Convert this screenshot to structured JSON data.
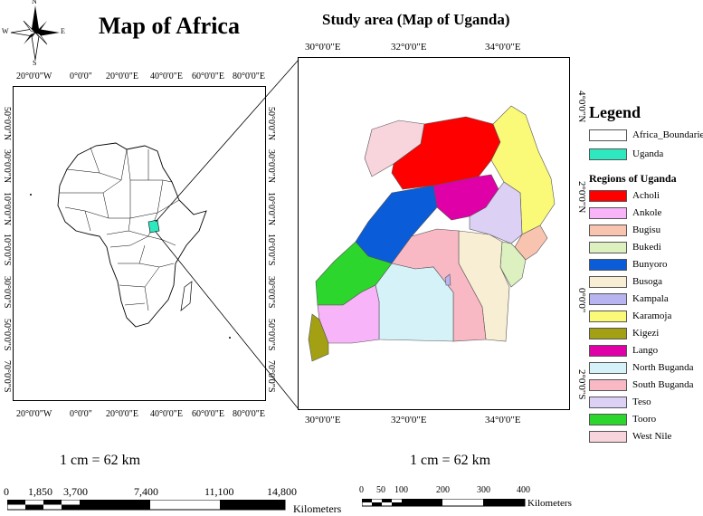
{
  "compass": {
    "n": "N",
    "s": "S",
    "e": "E",
    "w": "W"
  },
  "africa_title": "Map of Africa",
  "uganda_title": "Study area (Map of Uganda)",
  "africa_axes": {
    "x_ticks_top": [
      "20°0'0\"W",
      "0°0'0\"",
      "20°0'0\"E",
      "40°0'0\"E",
      "60°0'0\"E",
      "80°0'0\"E"
    ],
    "x_ticks_bottom": [
      "20°0'0\"W",
      "0°0'0\"",
      "20°0'0\"E",
      "40°0'0\"E",
      "60°0'0\"E",
      "80°0'0\"E"
    ],
    "y_ticks_left": [
      "50°0'0\"N",
      "30°0'0\"N",
      "10°0'0\"N",
      "10°0'0\"S",
      "30°0'0\"S",
      "50°0'0\"S",
      "70°0'0\"S"
    ],
    "y_ticks_right": [
      "50°0'0\"N",
      "30°0'0\"N",
      "10°0'0\"N",
      "10°0'0\"S",
      "30°0'0\"S",
      "50°0'0\"S",
      "70°0'0\"S"
    ]
  },
  "uganda_axes": {
    "x_ticks_top": [
      "30°0'0\"E",
      "32°0'0\"E",
      "34°0'0\"E"
    ],
    "x_ticks_bottom": [
      "30°0'0\"E",
      "32°0'0\"E",
      "34°0'0\"E"
    ],
    "y_ticks_right": [
      "4°0'0\"N",
      "2°0'0\"N",
      "0°0'0\"",
      "2°0'0\"S"
    ]
  },
  "legend": {
    "title": "Legend",
    "base_items": [
      {
        "label": "Africa_Boundaries",
        "color": "#ffffff"
      },
      {
        "label": "Uganda",
        "color": "#2ee8c0"
      }
    ],
    "regions_title": "Regions of Uganda",
    "regions": [
      {
        "label": "Acholi",
        "color": "#ff0000"
      },
      {
        "label": "Ankole",
        "color": "#f8b4f8"
      },
      {
        "label": "Bugisu",
        "color": "#f8c4b0"
      },
      {
        "label": "Bukedi",
        "color": "#dcf0c0"
      },
      {
        "label": "Bunyoro",
        "color": "#0a5cd8"
      },
      {
        "label": "Busoga",
        "color": "#f8eed4"
      },
      {
        "label": "Kampala",
        "color": "#b8b4f0"
      },
      {
        "label": "Karamoja",
        "color": "#fafa78"
      },
      {
        "label": "Kigezi",
        "color": "#a4a014"
      },
      {
        "label": "Lango",
        "color": "#e000a8"
      },
      {
        "label": "North Buganda",
        "color": "#d4f2f8"
      },
      {
        "label": "South Buganda",
        "color": "#f8b8c4"
      },
      {
        "label": "Teso",
        "color": "#dcd0f4"
      },
      {
        "label": "Tooro",
        "color": "#2cd62c"
      },
      {
        "label": "West Nile",
        "color": "#f8d4dc"
      }
    ]
  },
  "africa_scale": {
    "ratio": "1 cm = 62 km",
    "labels": [
      "0",
      "1,850",
      "3,700",
      "7,400",
      "11,100",
      "14,800"
    ],
    "unit": "Kilometers"
  },
  "uganda_scale": {
    "ratio": "1 cm = 62 km",
    "labels": [
      "0",
      "50",
      "100",
      "200",
      "300",
      "400"
    ],
    "unit": "Kilometers"
  }
}
